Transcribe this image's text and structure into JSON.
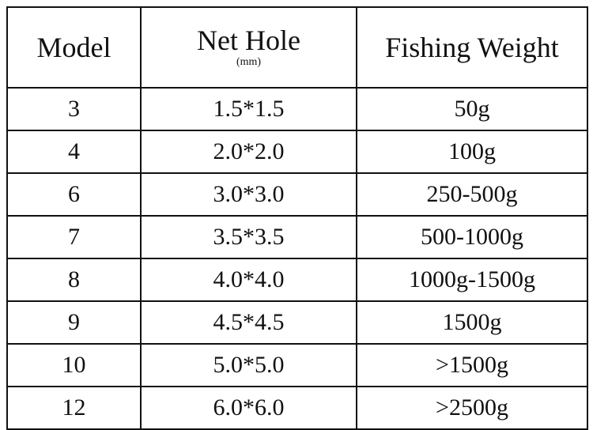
{
  "table": {
    "header": [
      "Model",
      "Net Hole",
      "Fishing Weight"
    ],
    "unit": "(mm)",
    "rows": [
      [
        "3",
        "1.5*1.5",
        "50g"
      ],
      [
        "4",
        "2.0*2.0",
        "100g"
      ],
      [
        "6",
        "3.0*3.0",
        "250-500g"
      ],
      [
        "7",
        "3.5*3.5",
        "500-1000g"
      ],
      [
        "8",
        "4.0*4.0",
        "1000g-1500g"
      ],
      [
        "9",
        "4.5*4.5",
        "1500g"
      ],
      [
        "10",
        "5.0*5.0",
        ">1500g"
      ],
      [
        "12",
        "6.0*6.0",
        ">2500g"
      ]
    ]
  }
}
